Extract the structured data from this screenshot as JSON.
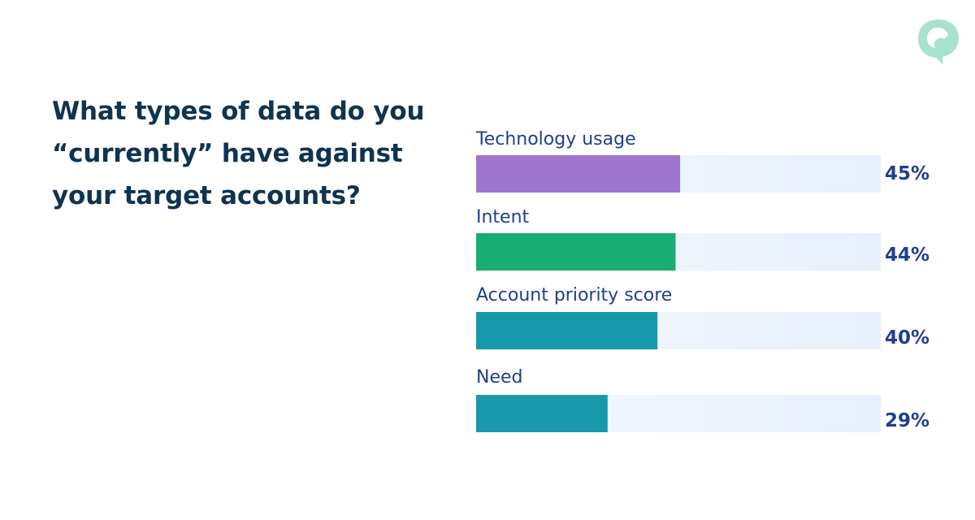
{
  "header": {
    "question": "What types of data do you “currently” have against your target accounts?"
  },
  "logo": {
    "icon": "speech-bubble-logo-icon",
    "color": "#a8e2cf"
  },
  "chart_data": {
    "type": "bar",
    "orientation": "horizontal",
    "categories": [
      "Technology usage",
      "Intent",
      "Account priority score",
      "Need"
    ],
    "values": [
      45,
      44,
      40,
      29
    ],
    "value_labels": [
      "45%",
      "44%",
      "40%",
      "29%"
    ],
    "unit": "%",
    "xlim": [
      0,
      100
    ],
    "bar_colors": [
      "#a077cf",
      "#18ad73",
      "#1799ab",
      "#1799ab"
    ],
    "track_color": "#e8f0fb",
    "label_color": "#1f3f8f",
    "grid": false
  }
}
